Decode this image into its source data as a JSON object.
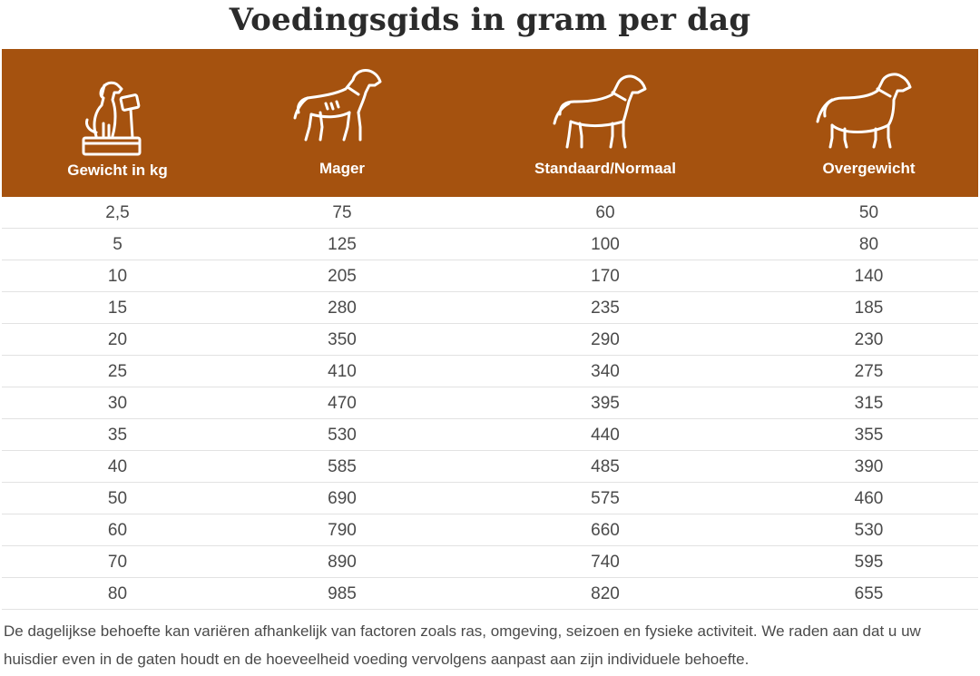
{
  "title": "Voedingsgids in gram per dag",
  "accent_color": "#a5520f",
  "columns": [
    {
      "label": "Gewicht in kg",
      "icon": "dog-on-scale-icon"
    },
    {
      "label": "Mager",
      "icon": "lean-dog-icon"
    },
    {
      "label": "Standaard/Normaal",
      "icon": "standard-dog-icon"
    },
    {
      "label": "Overgewicht",
      "icon": "overweight-dog-icon"
    }
  ],
  "rows": [
    [
      "2,5",
      "75",
      "60",
      "50"
    ],
    [
      "5",
      "125",
      "100",
      "80"
    ],
    [
      "10",
      "205",
      "170",
      "140"
    ],
    [
      "15",
      "280",
      "235",
      "185"
    ],
    [
      "20",
      "350",
      "290",
      "230"
    ],
    [
      "25",
      "410",
      "340",
      "275"
    ],
    [
      "30",
      "470",
      "395",
      "315"
    ],
    [
      "35",
      "530",
      "440",
      "355"
    ],
    [
      "40",
      "585",
      "485",
      "390"
    ],
    [
      "50",
      "690",
      "575",
      "460"
    ],
    [
      "60",
      "790",
      "660",
      "530"
    ],
    [
      "70",
      "890",
      "740",
      "595"
    ],
    [
      "80",
      "985",
      "820",
      "655"
    ]
  ],
  "note": "De dagelijkse behoefte kan variëren afhankelijk van factoren zoals ras, omgeving, seizoen en fysieke activiteit. We raden aan dat u uw huisdier even in de gaten houdt en de hoeveelheid voeding vervolgens aanpast aan zijn individuele behoefte."
}
